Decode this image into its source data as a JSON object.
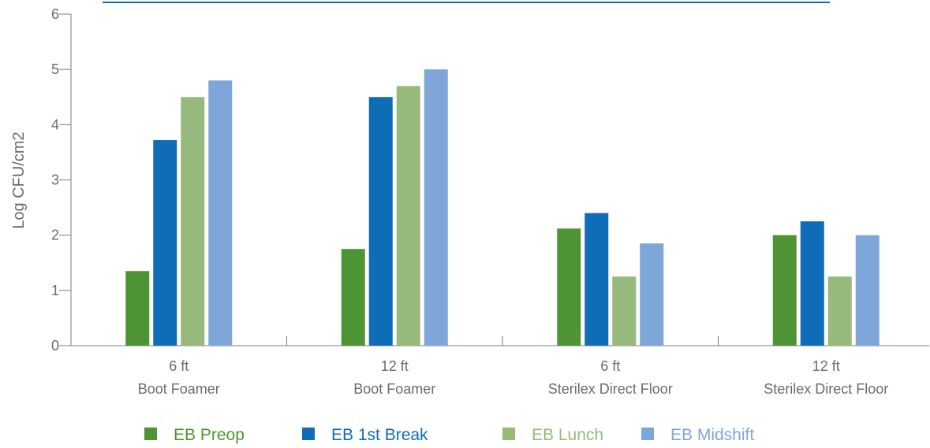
{
  "chart_data": {
    "type": "bar",
    "ylabel": "Log CFU/cm2",
    "ylim": [
      0,
      6
    ],
    "yticks": [
      "0",
      "1",
      "2",
      "3",
      "4",
      "5",
      "6"
    ],
    "categories": [
      {
        "line1": "6 ft",
        "line2": "Boot Foamer"
      },
      {
        "line1": "12 ft",
        "line2": "Boot Foamer"
      },
      {
        "line1": "6 ft",
        "line2": "Sterilex Direct Floor"
      },
      {
        "line1": "12 ft",
        "line2": "Sterilex Direct Floor"
      }
    ],
    "series": [
      {
        "name": "EB Preop",
        "color": "#4f9434",
        "values": [
          1.35,
          1.75,
          2.12,
          2.0
        ]
      },
      {
        "name": "EB 1st Break",
        "color": "#0f6cb6",
        "values": [
          3.72,
          4.5,
          2.4,
          2.25
        ]
      },
      {
        "name": "EB Lunch",
        "color": "#97ba7c",
        "values": [
          4.5,
          4.7,
          1.25,
          1.25
        ]
      },
      {
        "name": "EB Midshift",
        "color": "#7fa6d8",
        "values": [
          4.8,
          5.0,
          1.85,
          2.0
        ]
      }
    ],
    "legend_position": "bottom",
    "grid": false
  },
  "colors": {
    "axis": "#7a7a7a",
    "text": "#6b6b6b",
    "title_rule": "#0f6cb6"
  }
}
